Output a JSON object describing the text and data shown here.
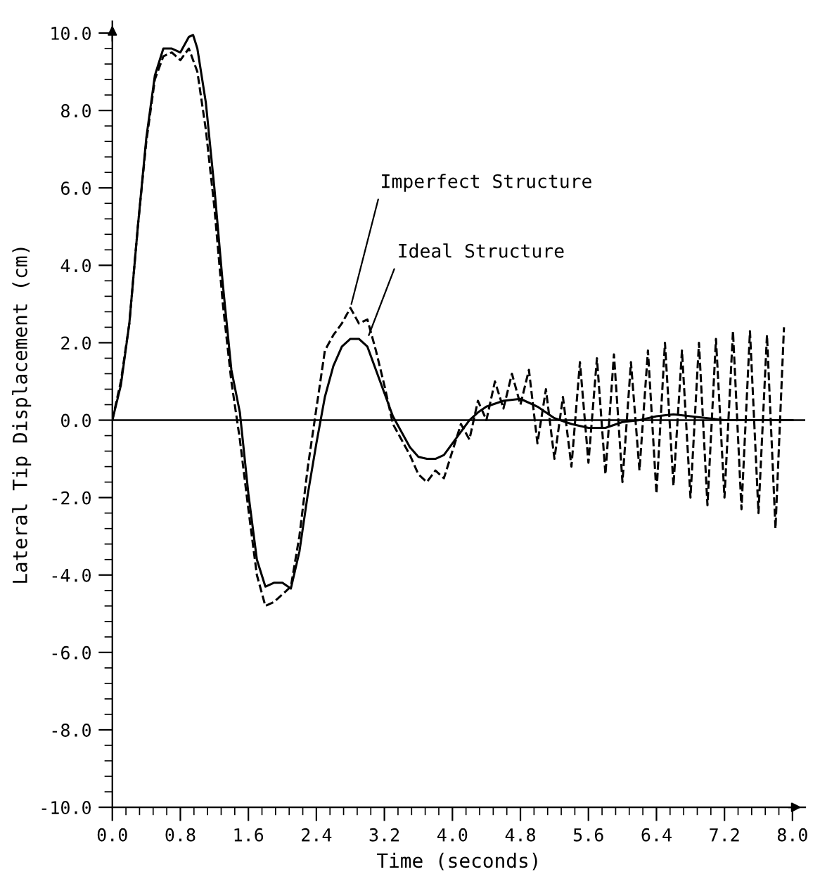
{
  "chart_data": {
    "type": "line",
    "xlabel": "Time (seconds)",
    "ylabel": "Lateral Tip Displacement (cm)",
    "xlim": [
      0,
      8.15
    ],
    "ylim": [
      -10,
      10.3
    ],
    "xticks": [
      {
        "value": 0,
        "label": "0.0"
      },
      {
        "value": 0.8,
        "label": "0.8"
      },
      {
        "value": 1.6,
        "label": "1.6"
      },
      {
        "value": 2.4,
        "label": "2.4"
      },
      {
        "value": 3.2,
        "label": "3.2"
      },
      {
        "value": 4.0,
        "label": "4.0"
      },
      {
        "value": 4.8,
        "label": "4.8"
      },
      {
        "value": 5.6,
        "label": "5.6"
      },
      {
        "value": 6.4,
        "label": "6.4"
      },
      {
        "value": 7.2,
        "label": "7.2"
      },
      {
        "value": 8.0,
        "label": "8.0"
      }
    ],
    "yticks": [
      {
        "value": -10,
        "label": "-10.0"
      },
      {
        "value": -8,
        "label": "-8.0"
      },
      {
        "value": -6,
        "label": "-6.0"
      },
      {
        "value": -4,
        "label": "-4.0"
      },
      {
        "value": -2,
        "label": "-2.0"
      },
      {
        "value": 0,
        "label": "0.0"
      },
      {
        "value": 2,
        "label": "2.0"
      },
      {
        "value": 4,
        "label": "4.0"
      },
      {
        "value": 6,
        "label": "6.0"
      },
      {
        "value": 8,
        "label": "8.0"
      },
      {
        "value": 10,
        "label": "10.0"
      }
    ],
    "grid": false,
    "legend": false,
    "ref_lines": [
      {
        "axis": "y",
        "value": 0,
        "color": "#000000",
        "line_style": "solid"
      }
    ],
    "annotations": [
      {
        "text": "Imperfect Structure",
        "x": 2.8,
        "y": 2.9
      },
      {
        "text": "Ideal Structure",
        "x": 3.0,
        "y": 2.1
      }
    ],
    "series": [
      {
        "color": "#000000",
        "line_style": "solid",
        "x": [
          0,
          0.1,
          0.2,
          0.3,
          0.4,
          0.5,
          0.6,
          0.7,
          0.8,
          0.9,
          0.95,
          1.0,
          1.1,
          1.2,
          1.3,
          1.4,
          1.5,
          1.6,
          1.7,
          1.8,
          1.9,
          2.0,
          2.1,
          2.2,
          2.3,
          2.4,
          2.5,
          2.6,
          2.7,
          2.8,
          2.9,
          3.0,
          3.1,
          3.2,
          3.3,
          3.4,
          3.5,
          3.6,
          3.7,
          3.8,
          3.9,
          4.0,
          4.1,
          4.2,
          4.3,
          4.4,
          4.6,
          4.8,
          5.0,
          5.2,
          5.4,
          5.6,
          5.8,
          6.0,
          6.2,
          6.4,
          6.6,
          6.8,
          7.0,
          7.2,
          7.4,
          7.6,
          7.8,
          8.0
        ],
        "values": [
          0,
          0.9,
          2.5,
          5.0,
          7.3,
          8.9,
          9.6,
          9.6,
          9.5,
          9.9,
          9.95,
          9.6,
          8.2,
          6.0,
          3.5,
          1.3,
          0.2,
          -1.9,
          -3.6,
          -4.3,
          -4.2,
          -4.2,
          -4.35,
          -3.4,
          -1.9,
          -0.6,
          0.6,
          1.4,
          1.9,
          2.1,
          2.1,
          1.9,
          1.3,
          0.7,
          0.1,
          -0.3,
          -0.7,
          -0.95,
          -1.0,
          -1.0,
          -0.9,
          -0.6,
          -0.3,
          0.0,
          0.2,
          0.35,
          0.5,
          0.55,
          0.35,
          0.05,
          -0.1,
          -0.2,
          -0.2,
          -0.05,
          0.0,
          0.1,
          0.15,
          0.1,
          0.05,
          0.0,
          0.0,
          0.0,
          0.0,
          0.0
        ]
      },
      {
        "color": "#000000",
        "line_style": "dashed",
        "x": [
          0,
          0.1,
          0.2,
          0.3,
          0.4,
          0.5,
          0.6,
          0.7,
          0.8,
          0.9,
          1.0,
          1.1,
          1.2,
          1.3,
          1.4,
          1.5,
          1.6,
          1.7,
          1.8,
          1.9,
          2.0,
          2.1,
          2.2,
          2.3,
          2.4,
          2.5,
          2.6,
          2.7,
          2.8,
          2.9,
          3.0,
          3.1,
          3.2,
          3.3,
          3.4,
          3.5,
          3.6,
          3.7,
          3.8,
          3.9,
          4.0,
          4.1,
          4.2,
          4.3,
          4.4,
          4.5,
          4.6,
          4.7,
          4.8,
          4.9,
          5.0,
          5.1,
          5.2,
          5.3,
          5.4,
          5.5,
          5.6,
          5.7,
          5.8,
          5.9,
          6.0,
          6.1,
          6.2,
          6.3,
          6.4,
          6.5,
          6.6,
          6.7,
          6.8,
          6.9,
          7.0,
          7.1,
          7.2,
          7.3,
          7.4,
          7.5,
          7.6,
          7.7,
          7.8,
          7.9
        ],
        "values": [
          0,
          1.0,
          2.5,
          5.0,
          7.2,
          8.8,
          9.4,
          9.5,
          9.3,
          9.6,
          9.0,
          7.5,
          5.5,
          3.0,
          1.0,
          -0.5,
          -2.3,
          -4.0,
          -4.8,
          -4.7,
          -4.5,
          -4.3,
          -3.0,
          -1.2,
          0.3,
          1.8,
          2.2,
          2.5,
          2.9,
          2.5,
          2.6,
          1.8,
          0.9,
          -0.1,
          -0.5,
          -0.9,
          -1.4,
          -1.6,
          -1.3,
          -1.5,
          -0.8,
          -0.1,
          -0.5,
          0.5,
          0.0,
          1.0,
          0.3,
          1.2,
          0.4,
          1.3,
          -0.6,
          0.8,
          -1.0,
          0.6,
          -1.2,
          1.5,
          -1.1,
          1.6,
          -1.4,
          1.7,
          -1.6,
          1.5,
          -1.3,
          1.8,
          -1.9,
          2.0,
          -1.7,
          1.8,
          -2.0,
          2.0,
          -2.2,
          2.1,
          -2.0,
          2.3,
          -2.3,
          2.3,
          -2.4,
          2.2,
          -2.8,
          2.4
        ]
      }
    ]
  }
}
